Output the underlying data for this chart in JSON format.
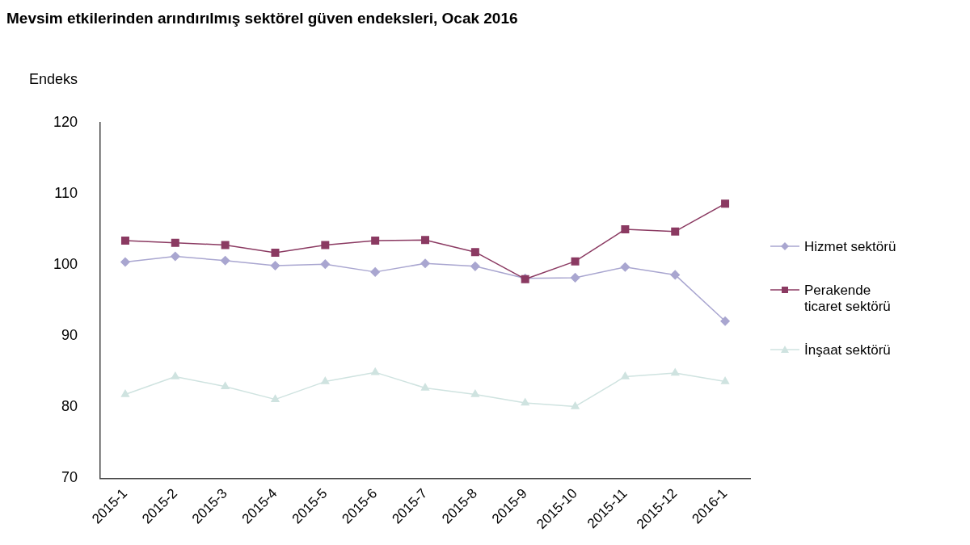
{
  "chart_data": {
    "type": "line",
    "title": "Mevsim etkilerinden arındırılmış sektörel güven endeksleri, Ocak 2016",
    "ylabel": "Endeks",
    "categories": [
      "2015-1",
      "2015-2",
      "2015-3",
      "2015-4",
      "2015-5",
      "2015-6",
      "2015-7",
      "2015-8",
      "2015-9",
      "2015-10",
      "2015-11",
      "2015-12",
      "2016-1"
    ],
    "series": [
      {
        "name": "Hizmet sektörü",
        "color": "#a9a6d0",
        "marker": "diamond",
        "values": [
          100.4,
          101.2,
          100.6,
          99.9,
          100.1,
          99.0,
          100.2,
          99.8,
          98.1,
          98.2,
          99.7,
          98.6,
          92.1
        ]
      },
      {
        "name": "Perakende ticaret sektörü",
        "color": "#8b3a62",
        "marker": "square",
        "values": [
          103.4,
          103.1,
          102.8,
          101.7,
          102.8,
          103.4,
          103.5,
          101.8,
          98.0,
          100.5,
          105.0,
          104.7,
          108.6
        ]
      },
      {
        "name": "İnşaat sektörü",
        "color": "#cfe3e0",
        "marker": "triangle",
        "values": [
          81.8,
          84.3,
          82.9,
          81.1,
          83.6,
          84.9,
          82.7,
          81.8,
          80.6,
          80.1,
          84.3,
          84.8,
          83.6
        ]
      }
    ],
    "ylim": [
      70,
      120
    ],
    "yticks": [
      70,
      80,
      90,
      100,
      110,
      120
    ],
    "grid": false,
    "legend": "right",
    "line_style": "solid"
  }
}
